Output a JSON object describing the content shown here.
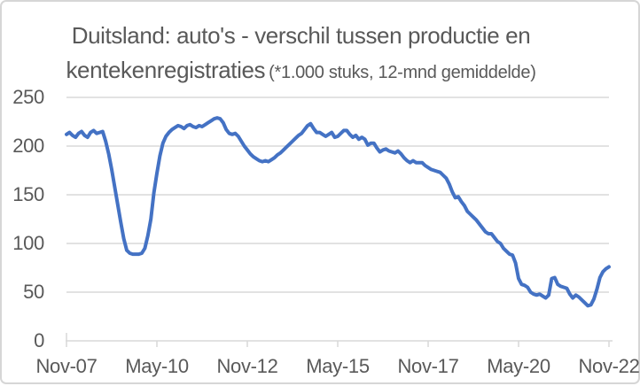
{
  "window": {
    "background": "#ffffff",
    "border_color": "#d6d6d6"
  },
  "title": {
    "line1": "Duitsland: auto's - verschil tussen productie en",
    "line2_main": "kentekenregistraties",
    "line2_note": "(*1.000 stuks, 12-mnd gemiddelde)",
    "color": "#595959"
  },
  "chart_data": {
    "type": "line",
    "title": "Duitsland: auto's - verschil tussen productie en kentekenregistraties (*1.000 stuks, 12-mnd gemiddelde)",
    "xlabel": "",
    "ylabel": "",
    "legend": "none",
    "grid": "horizontal",
    "x_frequency": "monthly",
    "x_range": [
      "Nov-07",
      "Nov-22"
    ],
    "x_tick_labels": [
      "Nov-07",
      "May-10",
      "Nov-12",
      "May-15",
      "Nov-17",
      "May-20",
      "Nov-22"
    ],
    "y_ticks": [
      250,
      200,
      150,
      100,
      50,
      0
    ],
    "y_tick_labels": [
      "250",
      "200",
      "150",
      "100",
      "50",
      "0"
    ],
    "ylim": [
      0,
      250
    ],
    "line_color": "#4472c4",
    "grid_color": "#d9d9d9",
    "axis_color": "#d9d9d9",
    "label_color": "#595959",
    "values": [
      212,
      214,
      211,
      209,
      213,
      215,
      211,
      209,
      214,
      216,
      213,
      214,
      215,
      205,
      192,
      176,
      158,
      140,
      122,
      105,
      93,
      90,
      89,
      89,
      89,
      90,
      95,
      108,
      125,
      152,
      172,
      190,
      203,
      210,
      214,
      217,
      219,
      221,
      220,
      218,
      221,
      222,
      220,
      219,
      221,
      220,
      222,
      224,
      226,
      228,
      229,
      228,
      224,
      217,
      213,
      212,
      213,
      210,
      205,
      200,
      196,
      192,
      189,
      187,
      185,
      184,
      185,
      184,
      186,
      188,
      191,
      193,
      196,
      199,
      202,
      205,
      208,
      211,
      213,
      217,
      221,
      223,
      218,
      214,
      214,
      212,
      210,
      212,
      214,
      209,
      210,
      213,
      216,
      216,
      212,
      209,
      211,
      207,
      209,
      207,
      201,
      203,
      203,
      198,
      194,
      196,
      197,
      195,
      194,
      193,
      195,
      192,
      188,
      185,
      183,
      185,
      183,
      183,
      183,
      180,
      178,
      176,
      175,
      174,
      173,
      170,
      167,
      161,
      153,
      147,
      148,
      143,
      139,
      133,
      130,
      127,
      124,
      120,
      116,
      112,
      110,
      110,
      106,
      102,
      100,
      95,
      92,
      89,
      88,
      80,
      64,
      58,
      57,
      55,
      50,
      48,
      47,
      48,
      46,
      44,
      47,
      64,
      65,
      58,
      56,
      55,
      54,
      48,
      44,
      47,
      45,
      42,
      39,
      36,
      37,
      43,
      53,
      65,
      71,
      74,
      76
    ]
  }
}
